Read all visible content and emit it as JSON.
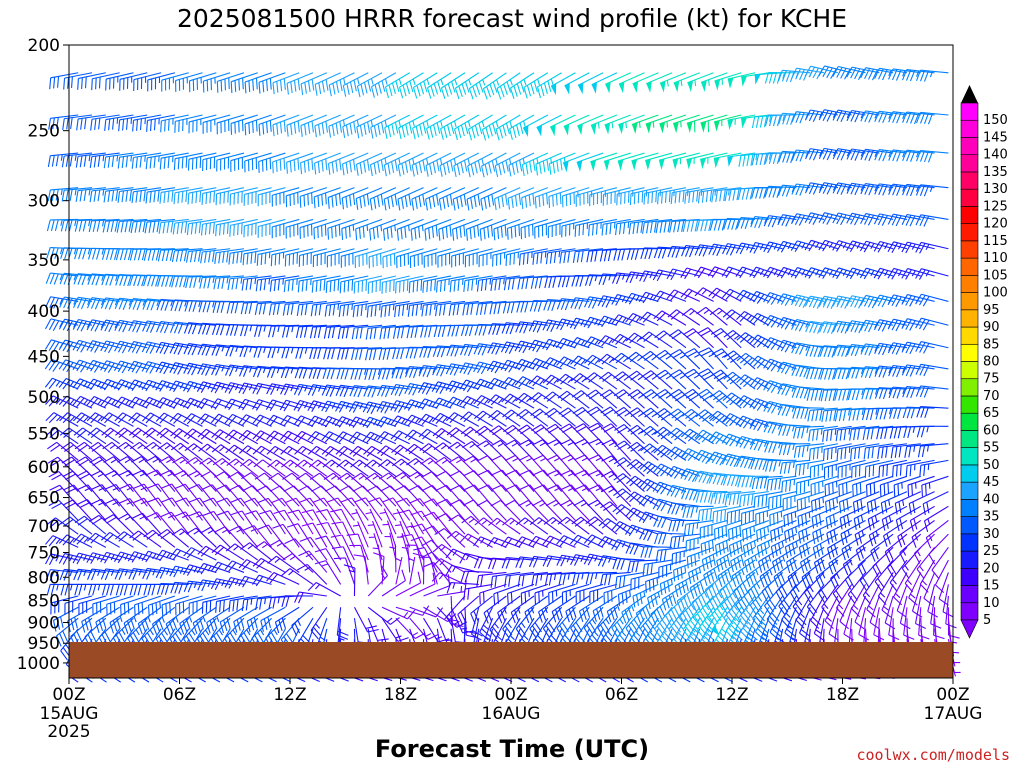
{
  "chart_data": {
    "type": "wind-barb-time-height",
    "title": "2025081500 HRRR forecast wind profile (kt) for KCHE",
    "xlabel": "Forecast Time (UTC)",
    "ylabel": "",
    "credit": "coolwx.com/models",
    "y_ticks": [
      "200",
      "250",
      "300",
      "350",
      "400",
      "450",
      "500",
      "550",
      "600",
      "650",
      "700",
      "750",
      "800",
      "850",
      "900",
      "950",
      "1000"
    ],
    "y_range_hpa": [
      200,
      1040
    ],
    "x_range_hours": [
      0,
      48
    ],
    "x_ticks": [
      {
        "label": "00Z",
        "sub": "15AUG",
        "sub2": "2025",
        "hour": 0
      },
      {
        "label": "06Z",
        "sub": "",
        "sub2": "",
        "hour": 6
      },
      {
        "label": "12Z",
        "sub": "",
        "sub2": "",
        "hour": 12
      },
      {
        "label": "18Z",
        "sub": "",
        "sub2": "",
        "hour": 18
      },
      {
        "label": "00Z",
        "sub": "16AUG",
        "sub2": "",
        "hour": 24
      },
      {
        "label": "06Z",
        "sub": "",
        "sub2": "",
        "hour": 30
      },
      {
        "label": "12Z",
        "sub": "",
        "sub2": "",
        "hour": 36
      },
      {
        "label": "18Z",
        "sub": "",
        "sub2": "",
        "hour": 42
      },
      {
        "label": "00Z",
        "sub": "17AUG",
        "sub2": "",
        "hour": 48
      }
    ],
    "surface_color": "#9b4a26",
    "colorbar": {
      "levels": [
        5,
        10,
        15,
        20,
        25,
        30,
        35,
        40,
        45,
        50,
        55,
        60,
        65,
        70,
        75,
        80,
        85,
        90,
        95,
        100,
        105,
        110,
        115,
        120,
        125,
        130,
        135,
        140,
        145,
        150
      ],
      "colors": [
        "#7f00ff",
        "#6a00ff",
        "#3d00ff",
        "#1a1aff",
        "#0033ff",
        "#0059ff",
        "#0080ff",
        "#1aa3ff",
        "#00ccee",
        "#00e6c0",
        "#00e680",
        "#00e640",
        "#33e600",
        "#80f000",
        "#ccff00",
        "#ffff00",
        "#ffd900",
        "#ffb300",
        "#ff9900",
        "#ff8000",
        "#ff6600",
        "#ff4000",
        "#ff1a00",
        "#ff0000",
        "#ff0040",
        "#ff0066",
        "#ff0099",
        "#ff00bb",
        "#ff00dd",
        "#ff00ff"
      ]
    },
    "profile_levels_hpa": [
      215,
      250,
      285,
      320,
      355,
      390,
      425,
      465,
      505,
      545,
      590,
      635,
      680,
      725,
      770,
      815,
      860,
      905,
      950
    ],
    "profile_hours": [
      0,
      6,
      12,
      18,
      24,
      30,
      36,
      42,
      48
    ],
    "speed_kt": [
      [
        30,
        35,
        40,
        45,
        45,
        50,
        55,
        40,
        35
      ],
      [
        30,
        35,
        40,
        45,
        45,
        55,
        60,
        30,
        40
      ],
      [
        35,
        40,
        40,
        40,
        40,
        45,
        45,
        35,
        35
      ],
      [
        35,
        40,
        40,
        35,
        40,
        35,
        40,
        30,
        30
      ],
      [
        35,
        40,
        35,
        45,
        35,
        25,
        20,
        20,
        20
      ],
      [
        35,
        35,
        30,
        35,
        30,
        30,
        15,
        45,
        30
      ],
      [
        35,
        30,
        25,
        30,
        30,
        25,
        15,
        40,
        30
      ],
      [
        30,
        30,
        25,
        35,
        30,
        25,
        25,
        40,
        30
      ],
      [
        25,
        25,
        20,
        30,
        25,
        20,
        30,
        40,
        30
      ],
      [
        25,
        20,
        20,
        25,
        20,
        20,
        35,
        35,
        25
      ],
      [
        20,
        15,
        15,
        20,
        15,
        15,
        40,
        35,
        25
      ],
      [
        20,
        15,
        10,
        15,
        10,
        15,
        45,
        35,
        20
      ],
      [
        20,
        10,
        10,
        10,
        10,
        15,
        40,
        30,
        15
      ],
      [
        25,
        15,
        10,
        5,
        15,
        20,
        40,
        30,
        10
      ],
      [
        25,
        25,
        15,
        5,
        20,
        25,
        40,
        25,
        10
      ],
      [
        25,
        30,
        20,
        5,
        20,
        30,
        45,
        15,
        10
      ],
      [
        30,
        35,
        30,
        10,
        25,
        35,
        50,
        10,
        10
      ],
      [
        30,
        35,
        35,
        15,
        25,
        35,
        45,
        10,
        5
      ],
      [
        25,
        25,
        25,
        15,
        20,
        25,
        25,
        10,
        5
      ]
    ],
    "direction_deg": [
      [
        260,
        255,
        250,
        240,
        235,
        245,
        250,
        285,
        275
      ],
      [
        265,
        260,
        250,
        245,
        240,
        250,
        255,
        280,
        275
      ],
      [
        265,
        260,
        255,
        245,
        245,
        255,
        260,
        280,
        275
      ],
      [
        270,
        265,
        255,
        250,
        250,
        260,
        270,
        285,
        280
      ],
      [
        275,
        270,
        260,
        255,
        260,
        270,
        285,
        290,
        285
      ],
      [
        280,
        275,
        265,
        260,
        265,
        280,
        300,
        280,
        285
      ],
      [
        285,
        280,
        270,
        265,
        275,
        290,
        315,
        275,
        285
      ],
      [
        290,
        285,
        275,
        270,
        285,
        300,
        320,
        270,
        280
      ],
      [
        295,
        290,
        285,
        280,
        295,
        310,
        315,
        265,
        275
      ],
      [
        300,
        300,
        295,
        290,
        305,
        315,
        305,
        260,
        270
      ],
      [
        310,
        310,
        300,
        300,
        315,
        320,
        290,
        255,
        260
      ],
      [
        315,
        320,
        310,
        310,
        320,
        320,
        270,
        250,
        245
      ],
      [
        320,
        325,
        320,
        320,
        320,
        320,
        255,
        245,
        235
      ],
      [
        300,
        320,
        330,
        340,
        300,
        305,
        245,
        240,
        220
      ],
      [
        280,
        285,
        310,
        350,
        270,
        280,
        235,
        230,
        205
      ],
      [
        270,
        270,
        290,
        15,
        250,
        255,
        225,
        215,
        190
      ],
      [
        245,
        235,
        245,
        100,
        220,
        225,
        215,
        200,
        180
      ],
      [
        225,
        215,
        215,
        150,
        205,
        210,
        205,
        180,
        170
      ],
      [
        200,
        195,
        190,
        180,
        190,
        195,
        190,
        175,
        165
      ]
    ]
  }
}
